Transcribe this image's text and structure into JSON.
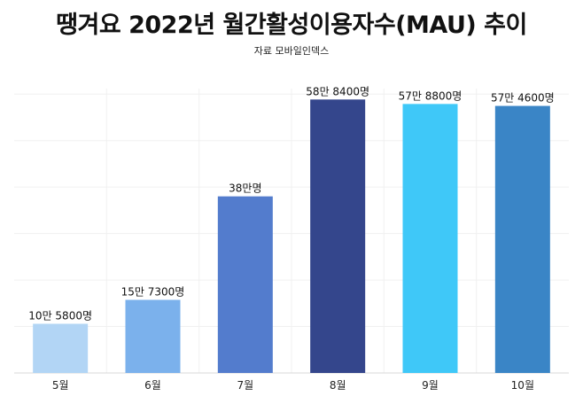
{
  "chart_data": {
    "type": "bar",
    "title": "땡겨요 2022년 월간활성이용자수(MAU) 추이",
    "subtitle": "자료 모바일인덱스",
    "xlabel": "",
    "ylabel": "",
    "categories": [
      "5월",
      "6월",
      "7월",
      "8월",
      "9월",
      "10월"
    ],
    "values": [
      105800,
      157300,
      380000,
      588400,
      578800,
      574600
    ],
    "data_labels": [
      "10만 5800명",
      "15만 7300명",
      "38만명",
      "58만 8400명",
      "57만 8800명",
      "57만 4600명"
    ],
    "colors": [
      "#B2D5F5",
      "#7BB1EC",
      "#537CCD",
      "#34468C",
      "#3FC8F8",
      "#3A85C6"
    ],
    "ylim": [
      0,
      650000
    ],
    "grid": true,
    "legend": "none"
  }
}
